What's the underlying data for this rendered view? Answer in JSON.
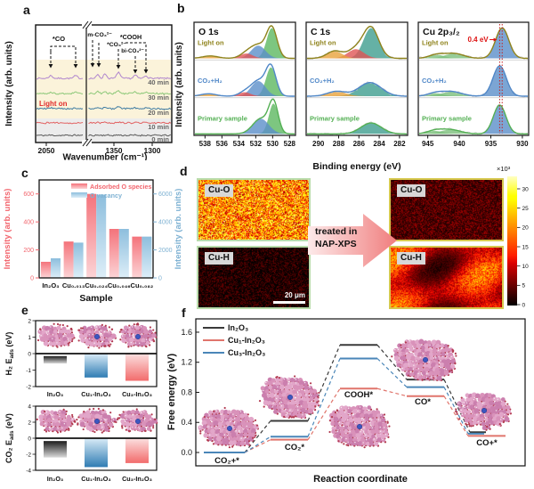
{
  "panels": {
    "a": {
      "label": "a",
      "xlabel": "Wavenumber (cm⁻¹)",
      "ylabel": "Intensity (arb. units)",
      "light_on": {
        "text": "Light on",
        "color": "#e02b2b"
      },
      "xticks_left": [
        "2050"
      ],
      "xticks_right": [
        "1350",
        "1300"
      ],
      "traces": [
        {
          "label": "40 min",
          "color": "#b187ce"
        },
        {
          "label": "30 min",
          "color": "#8cc878"
        },
        {
          "label": "20 min",
          "color": "#3f7ca3"
        },
        {
          "label": "10 min",
          "color": "#e26161"
        },
        {
          "label": "0 min",
          "color": "#5a5a5a"
        }
      ]
    },
    "b": {
      "label": "b",
      "ylabel": "Intensity (arb. units)",
      "xlabel": "Binding energy (eV)",
      "trace_labels": [
        "Light on",
        "CO₂+H₂",
        "Primary sample"
      ],
      "trace_colors": [
        "#8f831c",
        "#4f87c8",
        "#54b054"
      ]
    },
    "c": {
      "label": "c"
    },
    "d": {
      "label": "d",
      "left_images": [
        {
          "name": "Cu-O",
          "appearance": "bright"
        },
        {
          "name": "Cu-H",
          "appearance": "dark"
        }
      ],
      "right_images": [
        {
          "name": "Cu-O",
          "appearance": "dim"
        },
        {
          "name": "Cu-H",
          "appearance": "bright-patchy"
        }
      ],
      "arrow_text": [
        "treated in",
        "NAP-XPS"
      ],
      "scalebar": "20 μm",
      "colorbar": {
        "exp": "×10³",
        "ticks": [
          0,
          5,
          10,
          15,
          20,
          25,
          30
        ]
      }
    },
    "e": {
      "label": "e"
    },
    "f": {
      "label": "f"
    }
  },
  "chart_data": [
    {
      "id": "a",
      "type": "line",
      "xlabel": "Wavenumber (cm⁻¹)",
      "ylabel": "Intensity (arb. units)",
      "x_axis_break": true,
      "series": [
        "40 min",
        "30 min",
        "20 min",
        "10 min",
        "0 min"
      ],
      "annotations": [
        "*CO",
        "m-CO₃²⁻",
        "*COOH",
        "*CO₃²⁻",
        "bi-CO₃²⁻"
      ],
      "light_on_label": "Light on"
    },
    {
      "id": "b_O1s",
      "type": "area",
      "title": "O 1s",
      "xdomain": [
        539.3,
        527.3
      ],
      "xticks": [
        538,
        536,
        534,
        532,
        530,
        528
      ],
      "traces": [
        {
          "name": "Light on",
          "components": [
            {
              "center": 530.1,
              "width": 0.62,
              "height": 1.0,
              "fill": "#5cb860"
            },
            {
              "center": 531.7,
              "width": 0.85,
              "height": 0.42,
              "fill": "#5b8fc9"
            },
            {
              "center": 533.1,
              "width": 0.75,
              "height": 0.16,
              "fill": "#e05555"
            },
            {
              "center": 537.4,
              "width": 0.9,
              "height": 0.08,
              "fill": "#e8a23c"
            }
          ]
        },
        {
          "name": "CO₂+H₂",
          "components": [
            {
              "center": 530.2,
              "width": 0.6,
              "height": 0.95,
              "fill": "#5cb860"
            },
            {
              "center": 531.7,
              "width": 0.85,
              "height": 0.5,
              "fill": "#5b8fc9"
            },
            {
              "center": 533.3,
              "width": 0.7,
              "height": 0.13,
              "fill": "#e05555"
            },
            {
              "center": 537.6,
              "width": 0.9,
              "height": 0.08,
              "fill": "#e8a23c"
            }
          ]
        },
        {
          "name": "Primary sample",
          "components": [
            {
              "center": 529.9,
              "width": 0.55,
              "height": 1.0,
              "fill": "#5cb860"
            },
            {
              "center": 531.4,
              "width": 0.95,
              "height": 0.5,
              "fill": "#5b8fc9"
            }
          ]
        }
      ]
    },
    {
      "id": "b_C1s",
      "type": "area",
      "title": "C 1s",
      "xdomain": [
        291.2,
        281.2
      ],
      "xticks": [
        290,
        288,
        286,
        284,
        282
      ],
      "traces": [
        {
          "name": "Light on",
          "components": [
            {
              "center": 284.8,
              "width": 0.75,
              "height": 1.0,
              "fill": "#3f9d8f"
            },
            {
              "center": 286.3,
              "width": 0.8,
              "height": 0.3,
              "fill": "#e05555"
            },
            {
              "center": 288.4,
              "width": 0.75,
              "height": 0.24,
              "fill": "#e8a23c"
            }
          ]
        },
        {
          "name": "CO₂+H₂",
          "components": [
            {
              "center": 284.9,
              "width": 1.1,
              "height": 0.45,
              "fill": "#3f9d8f"
            },
            {
              "center": 288.2,
              "width": 0.9,
              "height": 0.16,
              "fill": "#e8a23c"
            }
          ]
        },
        {
          "name": "Primary sample",
          "components": [
            {
              "center": 284.8,
              "width": 1.0,
              "height": 0.36,
              "fill": "#3f9d8f"
            }
          ]
        }
      ]
    },
    {
      "id": "b_Cu2p",
      "type": "area",
      "title": "Cu 2p₃/₂",
      "xdomain": [
        946.5,
        929.0
      ],
      "xticks": [
        945,
        940,
        935,
        930
      ],
      "shift_label": "0.4 eV",
      "dotted_lines": [
        933.6,
        933.2
      ],
      "traces": [
        {
          "name": "Light on",
          "components": [
            {
              "center": 933.2,
              "width": 1.05,
              "height": 1.0,
              "fill": "#5b8fc9"
            },
            {
              "center": 940.8,
              "width": 1.5,
              "height": 0.16,
              "fill": "#7cbf7c"
            },
            {
              "center": 943.6,
              "width": 1.2,
              "height": 0.12,
              "fill": "#7cbf7c"
            }
          ]
        },
        {
          "name": "CO₂+H₂",
          "components": [
            {
              "center": 933.6,
              "width": 1.05,
              "height": 1.0,
              "fill": "#5b8fc9"
            },
            {
              "center": 941.2,
              "width": 1.6,
              "height": 0.15,
              "fill": "#7cbf7c"
            },
            {
              "center": 943.8,
              "width": 1.2,
              "height": 0.1,
              "fill": "#7cbf7c"
            }
          ]
        },
        {
          "name": "Primary sample",
          "components": [
            {
              "center": 933.6,
              "width": 1.0,
              "height": 0.95,
              "fill": "#5b8fc9"
            },
            {
              "center": 941.4,
              "width": 1.6,
              "height": 0.14,
              "fill": "#7cbf7c"
            },
            {
              "center": 943.9,
              "width": 1.2,
              "height": 0.1,
              "fill": "#7cbf7c"
            }
          ]
        }
      ]
    },
    {
      "id": "c",
      "type": "bar",
      "categories": [
        "In₂O₃",
        "Cu₀.₀₁₃",
        "Cu₀.₀₂₄",
        "Cu₀.₀₄₆",
        "Cu₀.₀₈₂"
      ],
      "xlabel": "Sample",
      "ylabel_left": "Intensity (arb. units)",
      "ylabel_right": "Intensity (arb. units)",
      "yticks_left": [
        0,
        200,
        400,
        600
      ],
      "yticks_right": [
        0,
        2000,
        4000,
        6000
      ],
      "ylim_left": [
        0,
        700
      ],
      "ylim_right": [
        0,
        7000
      ],
      "series": [
        {
          "name": "Adsorbed O species",
          "axis": "left",
          "values": [
            115,
            260,
            600,
            350,
            295
          ],
          "color_top": "#f4737b",
          "color_bottom": "#fcd4d6",
          "label_color": "#f2666e"
        },
        {
          "name": "O vacancy",
          "axis": "right",
          "values": [
            1400,
            2520,
            5950,
            3500,
            2950
          ],
          "color_top": "#8dbedd",
          "color_bottom": "#ddeef8",
          "label_color": "#7fb2d3"
        }
      ]
    },
    {
      "id": "e_H2",
      "type": "bar",
      "categories": [
        "In₂O₃",
        "Cu₁-In₂O₃",
        "Cu₃-In₂O₃"
      ],
      "values": [
        -0.6,
        -1.45,
        -1.65
      ],
      "bar_top_values": [
        -0.15,
        -0.02,
        -0.02
      ],
      "yticks": [
        2,
        1,
        0,
        -1,
        -2
      ],
      "ylim": [
        2,
        -2
      ],
      "ylabel": {
        "pre": "H₂ E",
        "sub": "ads",
        "post": " (eV)"
      },
      "bar_colors": [
        {
          "top": "#1c1c1c",
          "bottom": "#d9d9d9"
        },
        {
          "top": "#d7eaf6",
          "bottom": "#2f7cb3"
        },
        {
          "top": "#fbdede",
          "bottom": "#f26c6c"
        }
      ]
    },
    {
      "id": "e_CO2",
      "type": "bar",
      "categories": [
        "In₂O₃",
        "Cu₁-In₂O₃",
        "Cu₃-In₂O₃"
      ],
      "values": [
        -2.4,
        -3.6,
        -3.1
      ],
      "bar_top_values": [
        -0.35,
        -0.05,
        -0.05
      ],
      "yticks": [
        4,
        2,
        0,
        -2,
        -4
      ],
      "ylim": [
        5,
        -5
      ],
      "ylabel": {
        "pre": "CO₂ E",
        "sub": "ads",
        "post": " (eV)"
      },
      "bar_colors": [
        {
          "top": "#1c1c1c",
          "bottom": "#d9d9d9"
        },
        {
          "top": "#d7eaf6",
          "bottom": "#2f7cb3"
        },
        {
          "top": "#fbdede",
          "bottom": "#f26c6c"
        }
      ]
    },
    {
      "id": "f",
      "type": "line",
      "xlabel": "Reaction coordinate",
      "ylabel": "Free energy (eV)",
      "ytick_labels": [
        "0.0",
        "0.4",
        "0.8",
        "1.2",
        "1.6"
      ],
      "yticks": [
        0,
        0.4,
        0.8,
        1.2,
        1.6
      ],
      "ylim": [
        -0.18,
        1.78
      ],
      "steps": [
        "CO₂+*",
        "CO₂*",
        "COOH*",
        "CO*",
        "CO+*"
      ],
      "series": [
        {
          "name": "In₂O₃",
          "color": "#3a3a3a",
          "values": [
            0.0,
            0.42,
            1.43,
            0.97,
            0.27
          ]
        },
        {
          "name": "Cu₁-In₂O₃",
          "color": "#e0756c",
          "values": [
            0.0,
            0.17,
            0.85,
            0.75,
            0.22
          ]
        },
        {
          "name": "Cu₃-In₂O₃",
          "color": "#4a86b8",
          "values": [
            0.0,
            0.21,
            1.25,
            0.87,
            0.25
          ]
        }
      ]
    }
  ]
}
